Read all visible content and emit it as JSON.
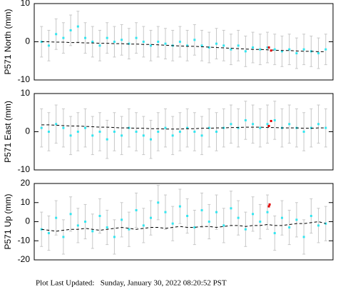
{
  "chart_data": [
    {
      "type": "scatter",
      "ylabel": "P571 North (mm)",
      "ylim": [
        -10,
        10
      ],
      "yticks": [
        -10,
        0,
        10
      ],
      "xlim": [
        -1,
        40
      ],
      "x": [
        0,
        1,
        2,
        3,
        4,
        5,
        6,
        7,
        8,
        9,
        10,
        11,
        12,
        13,
        14,
        15,
        16,
        17,
        18,
        19,
        20,
        21,
        22,
        23,
        24,
        25,
        26,
        27,
        28,
        29,
        30,
        31,
        32,
        33,
        34,
        35,
        36,
        37,
        38,
        39
      ],
      "series": [
        {
          "mode": "markers",
          "color": "#33e6f0",
          "error": 4,
          "error_color": "#c8c8c8",
          "values": [
            0,
            -1,
            2,
            1,
            3,
            4,
            1,
            0,
            -1,
            1,
            0,
            0.5,
            -0.5,
            1,
            0,
            -1,
            0,
            -0.5,
            -1,
            0,
            -1,
            0.5,
            -1,
            -1.5,
            -0.5,
            -1,
            -2,
            -1,
            -2.5,
            -1.5,
            -2,
            -1.5,
            -2,
            -2.5,
            -2,
            -3,
            -2,
            -2.5,
            -3,
            -2
          ]
        },
        {
          "mode": "line",
          "color": "#000000",
          "values": [
            0,
            0,
            -0.1,
            -0.1,
            -0.2,
            -0.2,
            -0.3,
            -0.3,
            -0.4,
            -0.4,
            -0.5,
            -0.5,
            -0.6,
            -0.6,
            -0.7,
            -0.7,
            -0.8,
            -0.9,
            -1,
            -1.1,
            -1.2,
            -1.2,
            -1.3,
            -1.4,
            -1.5,
            -1.6,
            -1.7,
            -1.8,
            -1.9,
            -2,
            -2,
            -2.1,
            -2.2,
            -2.3,
            -2.3,
            -2.4,
            -2.5,
            -2.5,
            -2.6,
            -2.6
          ]
        },
        {
          "mode": "markers",
          "color": "#e00000",
          "x": [
            31.2,
            31.5
          ],
          "values": [
            -1.5,
            -2.3
          ]
        }
      ]
    },
    {
      "type": "scatter",
      "ylabel": "P571 East (mm)",
      "ylim": [
        -10,
        10
      ],
      "yticks": [
        -10,
        0,
        10
      ],
      "xlim": [
        -1,
        40
      ],
      "x": [
        0,
        1,
        2,
        3,
        4,
        5,
        6,
        7,
        8,
        9,
        10,
        11,
        12,
        13,
        14,
        15,
        16,
        17,
        18,
        19,
        20,
        21,
        22,
        23,
        24,
        25,
        26,
        27,
        28,
        29,
        30,
        31,
        32,
        33,
        34,
        35,
        36,
        37,
        38,
        39
      ],
      "series": [
        {
          "mode": "markers",
          "color": "#33e6f0",
          "error": 5,
          "error_color": "#c8c8c8",
          "values": [
            1,
            0,
            2,
            1,
            -1,
            0,
            1,
            -1,
            0,
            -2,
            0,
            -1,
            1,
            0,
            -1,
            -2,
            0,
            1,
            -1,
            0,
            1,
            0,
            -1,
            1,
            0,
            1,
            2,
            1,
            3,
            2,
            1,
            2,
            3,
            1,
            2,
            1,
            0,
            1,
            2,
            1
          ]
        },
        {
          "mode": "line",
          "color": "#000000",
          "values": [
            1.8,
            1.8,
            1.7,
            1.6,
            1.5,
            1.5,
            1.4,
            1.3,
            1.2,
            1.2,
            1.1,
            1.0,
            1.0,
            0.9,
            0.9,
            0.8,
            0.8,
            0.7,
            0.7,
            0.7,
            0.8,
            0.8,
            0.9,
            0.9,
            1.0,
            1.0,
            1.1,
            1.1,
            1.2,
            1.2,
            1.2,
            1.1,
            1.1,
            1.0,
            1.0,
            1.0,
            0.9,
            0.9,
            1.0,
            1.0
          ]
        },
        {
          "mode": "markers",
          "color": "#e00000",
          "x": [
            31.2,
            31.5
          ],
          "values": [
            1.5,
            2.8
          ]
        }
      ]
    },
    {
      "type": "scatter",
      "ylabel": "P571 Up (mm)",
      "ylim": [
        -20,
        20
      ],
      "yticks": [
        -20,
        -10,
        0,
        10,
        20
      ],
      "xlim": [
        -1,
        40
      ],
      "x": [
        0,
        1,
        2,
        3,
        4,
        5,
        6,
        7,
        8,
        9,
        10,
        11,
        12,
        13,
        14,
        15,
        16,
        17,
        18,
        19,
        20,
        21,
        22,
        23,
        24,
        25,
        26,
        27,
        28,
        29,
        30,
        31,
        32,
        33,
        34,
        35,
        36,
        37,
        38,
        39
      ],
      "series": [
        {
          "mode": "markers",
          "color": "#33e6f0",
          "error": 9,
          "error_color": "#c8c8c8",
          "values": [
            -4,
            -6,
            2,
            -8,
            4,
            -2,
            0,
            -5,
            3,
            -3,
            -8,
            1,
            -4,
            6,
            -2,
            2,
            10,
            5,
            -1,
            8,
            3,
            -3,
            6,
            0,
            5,
            -2,
            7,
            2,
            -4,
            4,
            0,
            5,
            -6,
            2,
            -3,
            1,
            -8,
            3,
            -2,
            -1
          ]
        },
        {
          "mode": "line",
          "color": "#000000",
          "values": [
            -4,
            -4.5,
            -5,
            -4.5,
            -4,
            -4,
            -3.5,
            -4,
            -4.5,
            -4,
            -3.5,
            -3,
            -3.5,
            -4,
            -3.5,
            -3,
            -3,
            -3.5,
            -3,
            -2.5,
            -3,
            -3,
            -2.5,
            -2.5,
            -3,
            -2.5,
            -2,
            -2,
            -2.5,
            -2,
            -2,
            -1.5,
            -2,
            -2,
            -1.5,
            -1,
            -1,
            -0.5,
            0,
            -1
          ]
        },
        {
          "mode": "markers",
          "color": "#e00000",
          "x": [
            31.2,
            31.3
          ],
          "values": [
            8,
            9
          ]
        }
      ]
    }
  ],
  "footer": "Plot Last Updated:   Sunday, January 30, 2022 08:20:52 PST"
}
